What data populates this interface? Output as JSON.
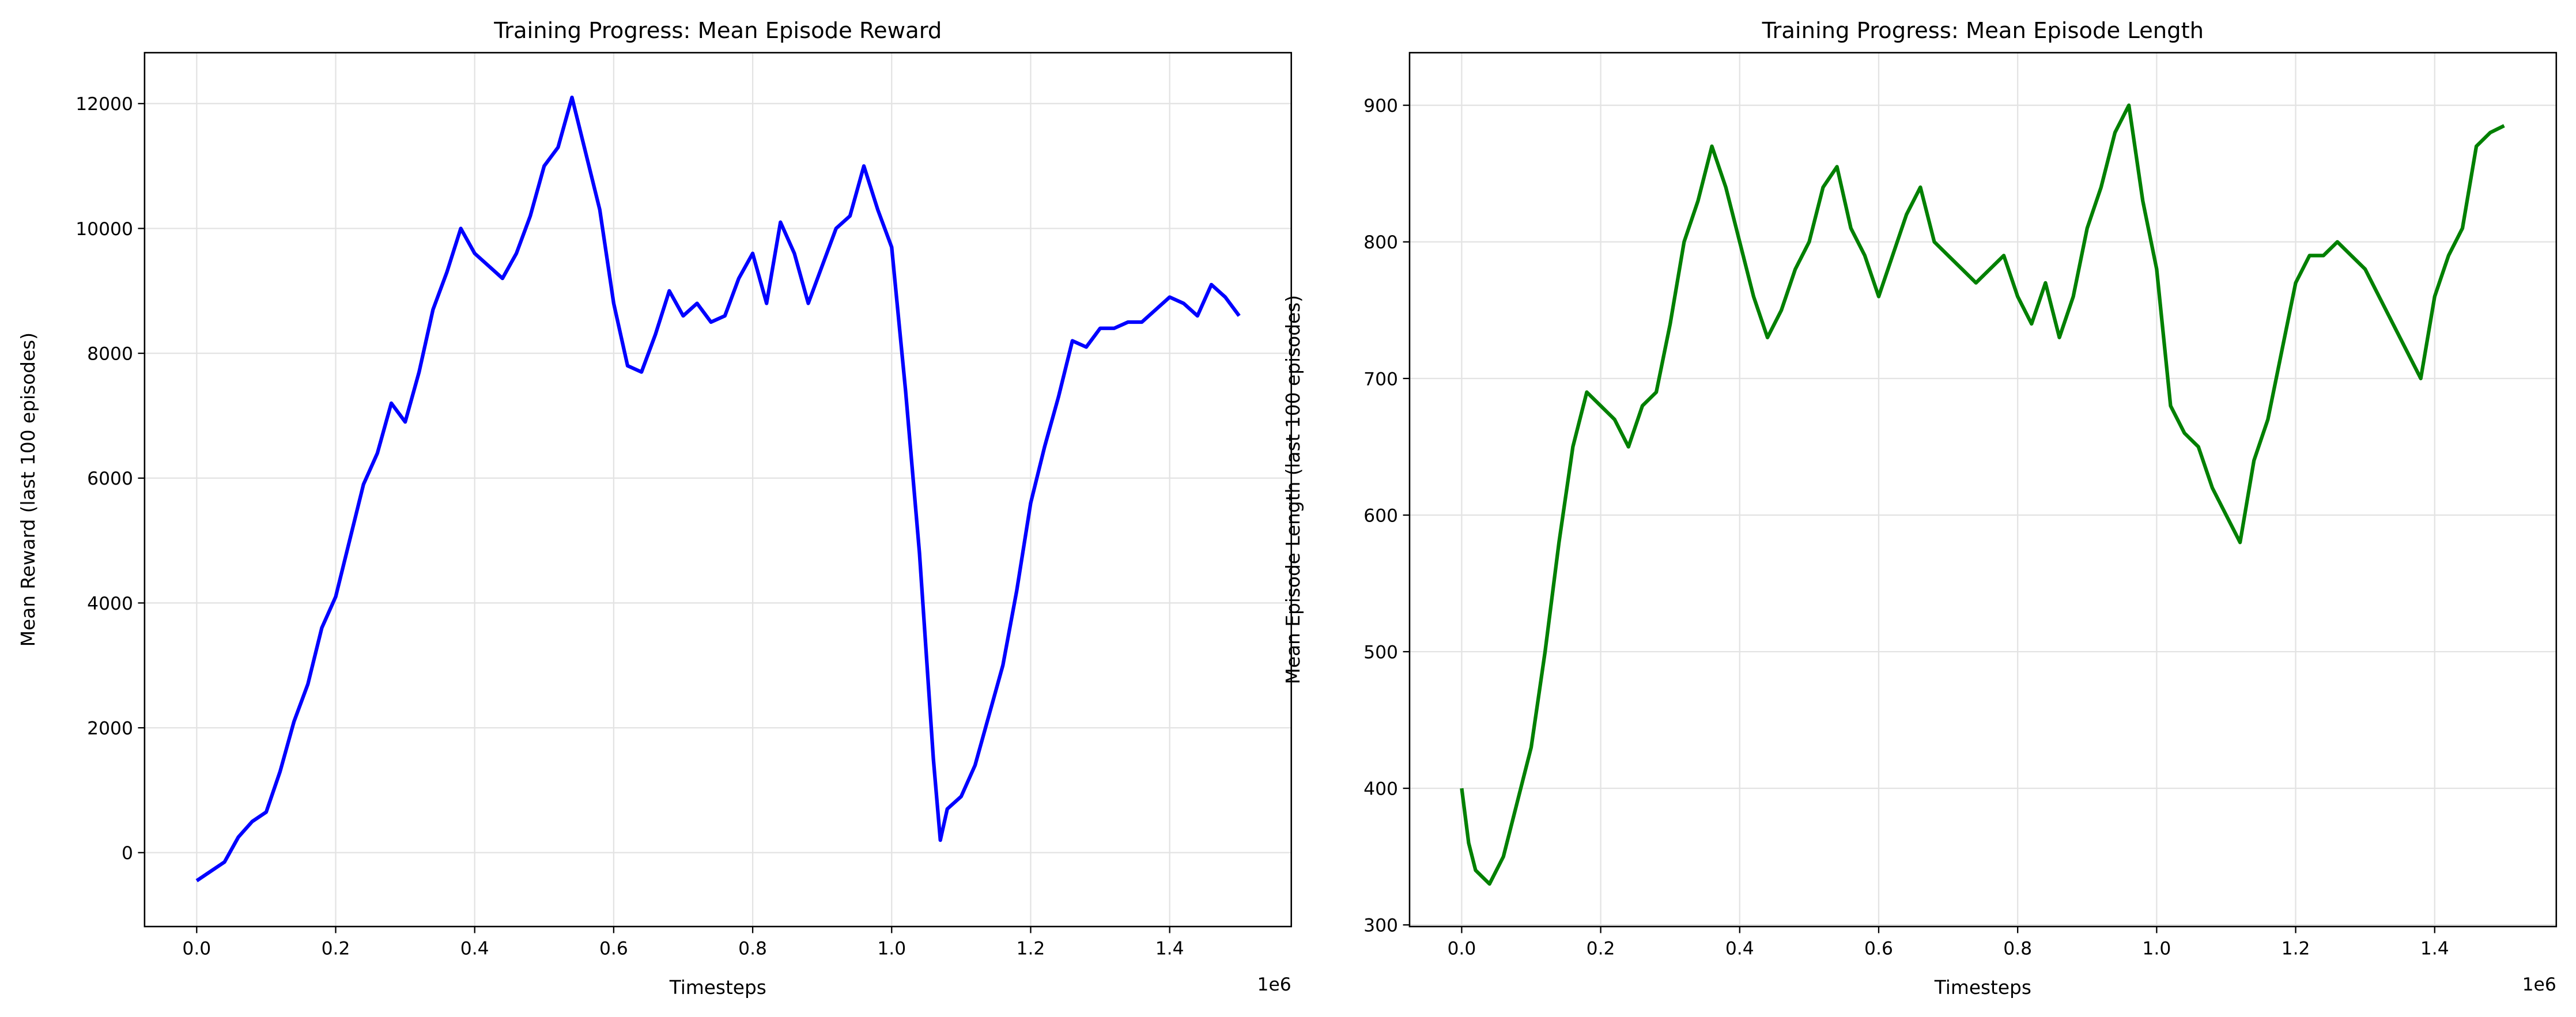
{
  "chart_data": [
    {
      "type": "line",
      "title": "Training Progress: Mean Episode Reward",
      "xlabel": "Timesteps",
      "ylabel": "Mean Reward (last 100 episodes)",
      "x_offset_label": "1e6",
      "x": [
        0.0,
        0.02,
        0.04,
        0.06,
        0.08,
        0.1,
        0.12,
        0.14,
        0.16,
        0.18,
        0.2,
        0.22,
        0.24,
        0.26,
        0.28,
        0.3,
        0.32,
        0.34,
        0.36,
        0.38,
        0.4,
        0.42,
        0.44,
        0.46,
        0.48,
        0.5,
        0.52,
        0.54,
        0.56,
        0.58,
        0.6,
        0.62,
        0.64,
        0.66,
        0.68,
        0.7,
        0.72,
        0.74,
        0.76,
        0.78,
        0.8,
        0.82,
        0.84,
        0.86,
        0.88,
        0.9,
        0.92,
        0.94,
        0.96,
        0.98,
        1.0,
        1.02,
        1.04,
        1.06,
        1.07,
        1.08,
        1.1,
        1.12,
        1.14,
        1.16,
        1.18,
        1.2,
        1.22,
        1.24,
        1.26,
        1.28,
        1.3,
        1.32,
        1.34,
        1.36,
        1.38,
        1.4,
        1.42,
        1.44,
        1.46,
        1.48,
        1.5
      ],
      "series": [
        {
          "color": "#0000ff",
          "values": [
            -450,
            -300,
            -150,
            250,
            500,
            650,
            1300,
            2100,
            2700,
            3600,
            4100,
            5000,
            5900,
            6400,
            7200,
            6900,
            7700,
            8700,
            9300,
            10000,
            9600,
            9400,
            9200,
            9600,
            10200,
            11000,
            11300,
            12100,
            11200,
            10300,
            8800,
            7800,
            7700,
            8300,
            9000,
            8600,
            8800,
            8500,
            8600,
            9200,
            9600,
            8800,
            10100,
            9600,
            8800,
            9400,
            10000,
            10200,
            11000,
            10300,
            9700,
            7400,
            4800,
            1500,
            200,
            700,
            900,
            1400,
            2200,
            3000,
            4200,
            5600,
            6500,
            7300,
            8200,
            8100,
            8400,
            8400,
            8500,
            8500,
            8700,
            8900,
            8800,
            8600,
            9100,
            8900,
            8600
          ]
        }
      ],
      "xlim": [
        -0.075,
        1.575
      ],
      "ylim": [
        -1184,
        12816
      ],
      "xticks": [
        {
          "value": 0,
          "label": "0.0"
        },
        0.2,
        0.4,
        0.6,
        0.8,
        {
          "value": 1,
          "label": "1.0"
        },
        1.2,
        1.4
      ],
      "yticks": [
        0,
        2000,
        4000,
        6000,
        8000,
        10000,
        12000
      ],
      "grid": true
    },
    {
      "type": "line",
      "title": "Training Progress: Mean Episode Length",
      "xlabel": "Timesteps",
      "ylabel": "Mean Episode Length (last 100 episodes)",
      "x_offset_label": "1e6",
      "x": [
        0.0,
        0.01,
        0.02,
        0.04,
        0.06,
        0.08,
        0.1,
        0.12,
        0.14,
        0.16,
        0.18,
        0.2,
        0.22,
        0.24,
        0.26,
        0.28,
        0.3,
        0.32,
        0.34,
        0.36,
        0.38,
        0.4,
        0.42,
        0.44,
        0.46,
        0.48,
        0.5,
        0.52,
        0.54,
        0.56,
        0.58,
        0.6,
        0.62,
        0.64,
        0.66,
        0.68,
        0.7,
        0.72,
        0.74,
        0.76,
        0.78,
        0.8,
        0.82,
        0.84,
        0.86,
        0.88,
        0.9,
        0.92,
        0.94,
        0.96,
        0.98,
        1.0,
        1.02,
        1.04,
        1.06,
        1.08,
        1.1,
        1.12,
        1.14,
        1.16,
        1.18,
        1.2,
        1.22,
        1.24,
        1.26,
        1.28,
        1.3,
        1.32,
        1.34,
        1.36,
        1.38,
        1.4,
        1.42,
        1.44,
        1.46,
        1.48,
        1.5
      ],
      "series": [
        {
          "color": "#008000",
          "values": [
            400,
            360,
            340,
            330,
            350,
            390,
            430,
            500,
            580,
            650,
            690,
            680,
            670,
            650,
            680,
            690,
            740,
            800,
            830,
            870,
            840,
            800,
            760,
            730,
            750,
            780,
            800,
            840,
            855,
            810,
            790,
            760,
            790,
            820,
            840,
            800,
            790,
            780,
            770,
            780,
            790,
            760,
            740,
            770,
            730,
            760,
            810,
            840,
            880,
            900,
            830,
            780,
            680,
            660,
            650,
            620,
            600,
            580,
            640,
            670,
            720,
            770,
            790,
            790,
            800,
            790,
            780,
            760,
            740,
            720,
            700,
            760,
            790,
            810,
            870,
            880,
            885
          ]
        }
      ],
      "xlim": [
        -0.075,
        1.575
      ],
      "ylim": [
        298.8,
        938.5
      ],
      "xticks": [
        {
          "value": 0,
          "label": "0.0"
        },
        0.2,
        0.4,
        0.6,
        0.8,
        {
          "value": 1,
          "label": "1.0"
        },
        1.2,
        1.4
      ],
      "yticks": [
        300,
        400,
        500,
        600,
        700,
        800,
        900
      ],
      "grid": true
    }
  ]
}
